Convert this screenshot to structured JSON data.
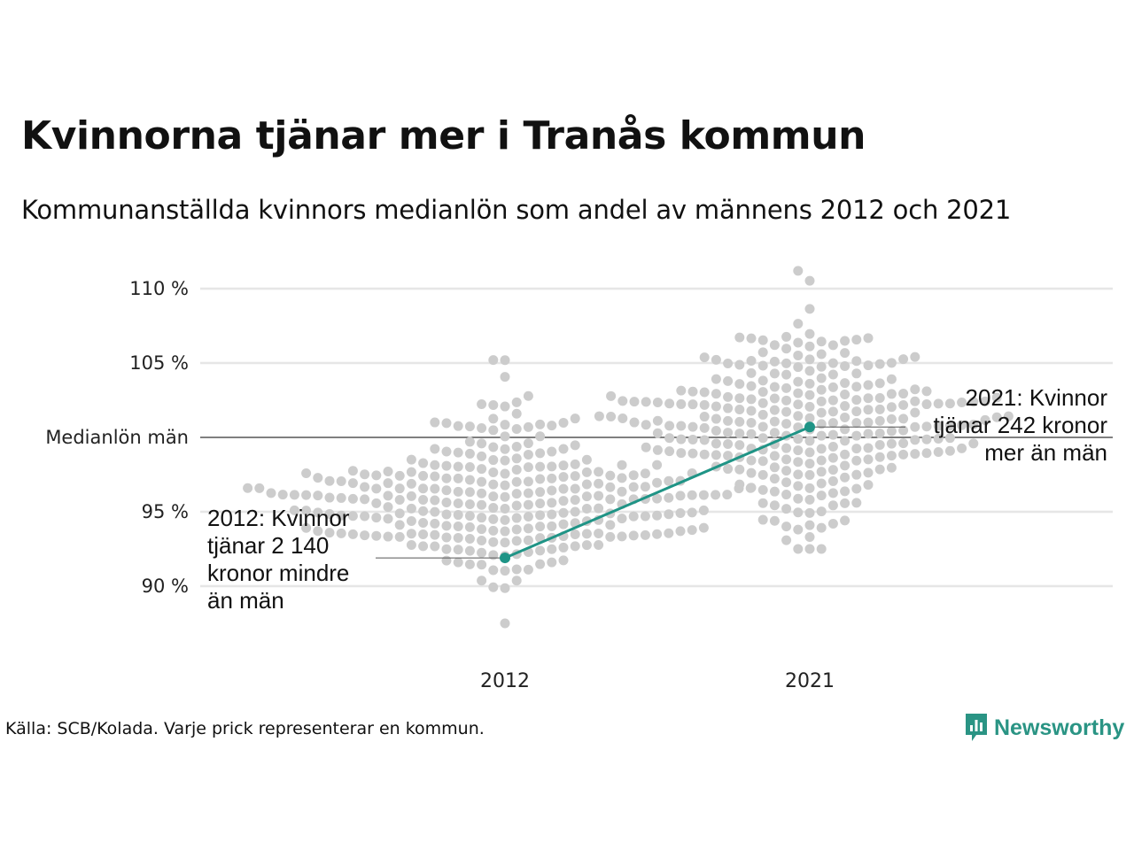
{
  "title": "Kvinnorna tjänar mer i Tranås kommun",
  "subtitle": "Kommunanställda kvinnors medianlön som andel av männens 2012 och 2021",
  "source": "Källa: SCB/Kolada. Varje prick representerar en kommun.",
  "logo": {
    "text": "Newsworthy",
    "icon": "newsworthy-logo-icon"
  },
  "colors": {
    "dots": "#cccccc",
    "highlight": "#1f9486",
    "grid": "#e6e6e6",
    "baseline": "#333333"
  },
  "chart_data": {
    "type": "scatter",
    "subtype": "beeswarm",
    "categories": [
      "2012",
      "2021"
    ],
    "y_ticks": [
      {
        "value": 90,
        "label": "90 %"
      },
      {
        "value": 95,
        "label": "95 %"
      },
      {
        "value": 100,
        "label": "Medianlön män"
      },
      {
        "value": 105,
        "label": "105 %"
      },
      {
        "value": 110,
        "label": "110 %"
      }
    ],
    "ylim": [
      86.5,
      111.5
    ],
    "reference_line": {
      "value": 100,
      "label": "Medianlön män"
    },
    "highlight": {
      "name": "Tranås",
      "values": [
        {
          "x": "2012",
          "y": 91.9
        },
        {
          "x": "2021",
          "y": 100.7
        }
      ]
    },
    "distributions": [
      {
        "x": "2012",
        "summary": {
          "min": 87.5,
          "max": 105.2,
          "count": 290
        }
      },
      {
        "x": "2021",
        "summary": {
          "min": 92.5,
          "max": 111.2,
          "count": 290
        }
      }
    ],
    "annotations": [
      {
        "x": "2012",
        "lines": [
          "2012: Kvinnor",
          "tjänar 2 140",
          "kronor mindre",
          "än män"
        ]
      },
      {
        "x": "2021",
        "lines": [
          "2021: Kvinnor",
          "tjänar 242 kronor",
          "mer än män"
        ]
      }
    ],
    "grid": true
  }
}
